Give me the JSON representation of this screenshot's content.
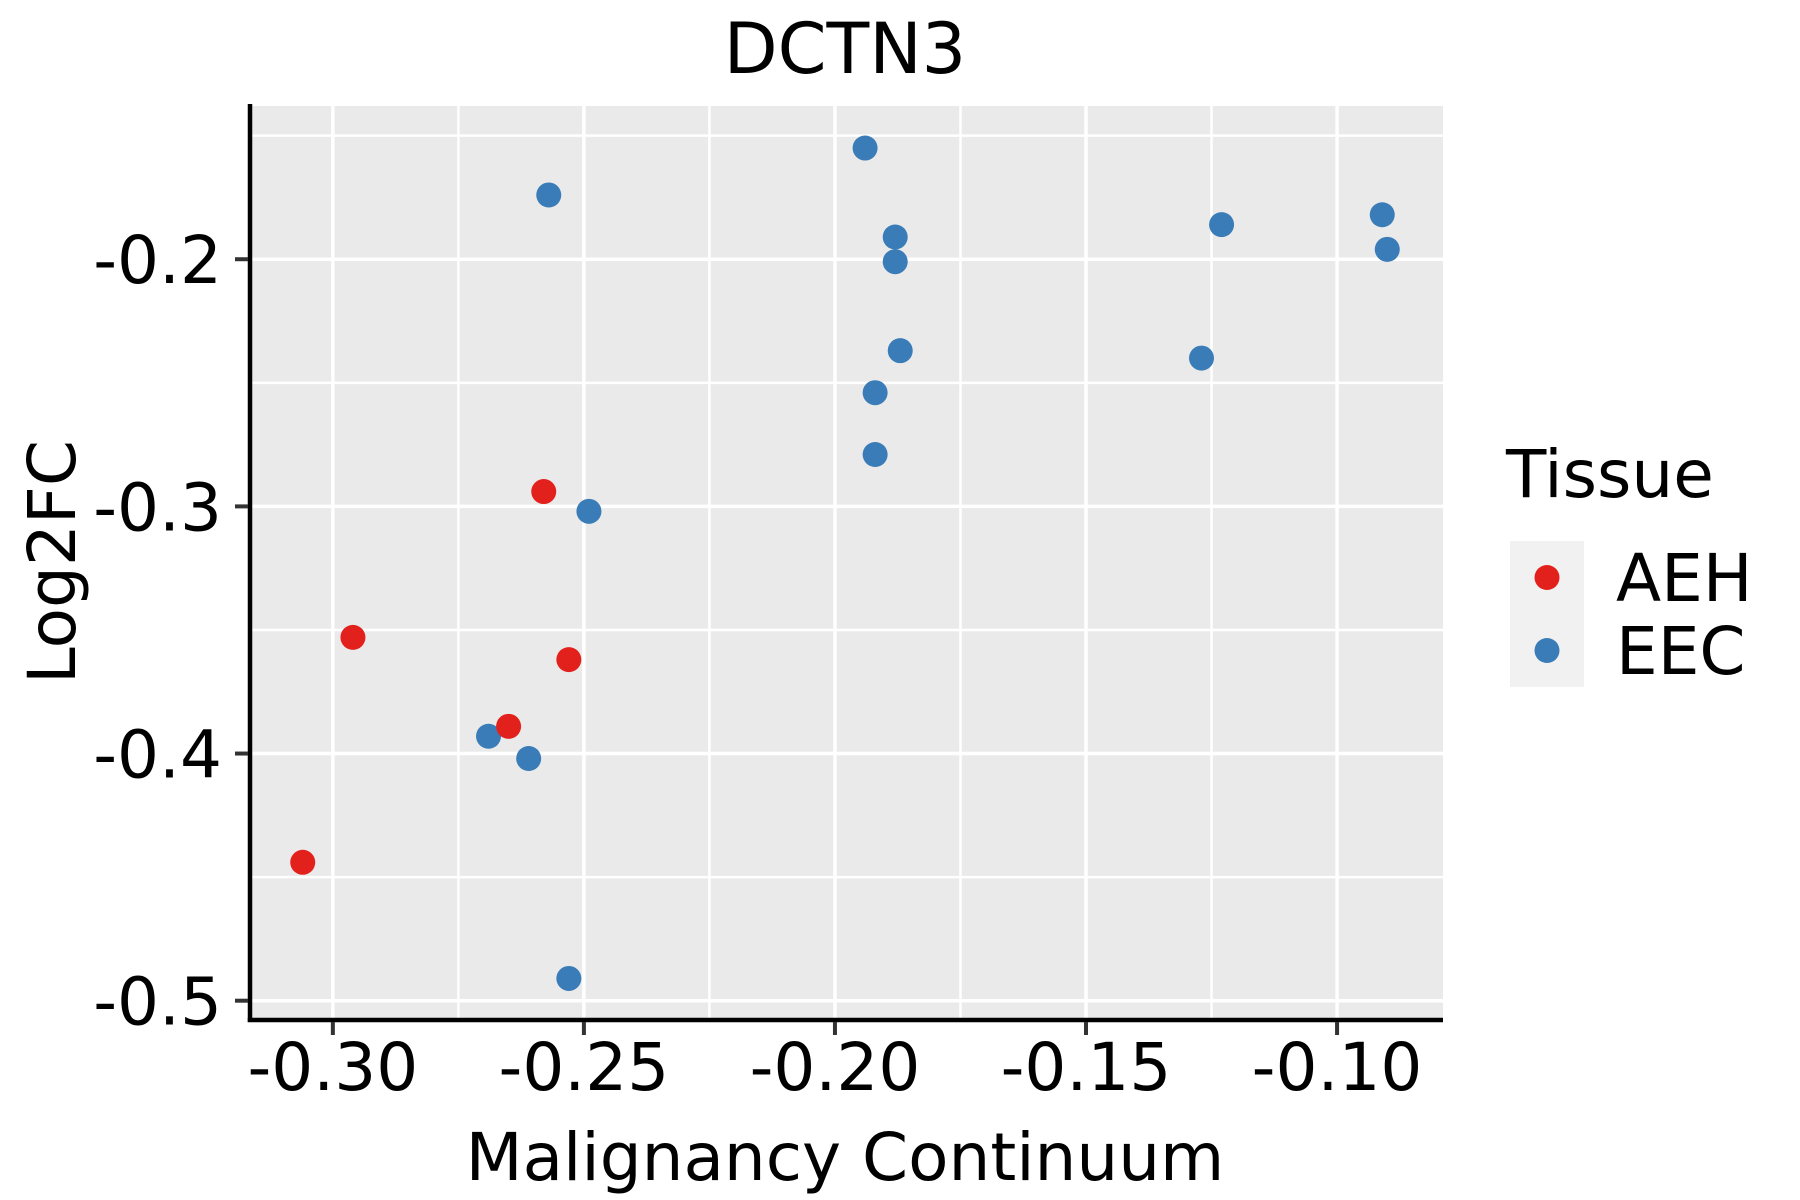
{
  "chart_data": {
    "type": "scatter",
    "title": "DCTN3",
    "xlabel": "Malignancy Continuum",
    "ylabel": "Log2FC",
    "legend_title": "Tissue",
    "legend_position": "right",
    "grid": true,
    "panel_bg": "#EAEAEA",
    "legend_key_bg": "#F1F1F1",
    "axis_line_color": "#000000",
    "tick_color": "#333333",
    "xlim": [
      -0.3169,
      -0.0789
    ],
    "ylim": [
      -0.507,
      -0.138
    ],
    "x_ticks": [
      -0.3,
      -0.25,
      -0.2,
      -0.15,
      -0.1
    ],
    "x_tick_labels": [
      "-0.30",
      "-0.25",
      "-0.20",
      "-0.15",
      "-0.10"
    ],
    "x_minor_ticks": [
      -0.275,
      -0.225,
      -0.175,
      -0.125
    ],
    "y_ticks": [
      -0.2,
      -0.3,
      -0.4,
      -0.5
    ],
    "y_tick_labels": [
      "-0.2",
      "-0.3",
      "-0.4",
      "-0.5"
    ],
    "y_minor_ticks": [
      -0.15,
      -0.25,
      -0.35,
      -0.45
    ],
    "series": [
      {
        "name": "AEH",
        "color": "#E3211C",
        "points": [
          [
            -0.258,
            -0.294
          ],
          [
            -0.296,
            -0.353
          ],
          [
            -0.253,
            -0.362
          ],
          [
            -0.265,
            -0.389
          ],
          [
            -0.306,
            -0.444
          ]
        ]
      },
      {
        "name": "EEC",
        "color": "#3A7CB8",
        "points": [
          [
            -0.257,
            -0.174
          ],
          [
            -0.194,
            -0.155
          ],
          [
            -0.188,
            -0.191
          ],
          [
            -0.188,
            -0.201
          ],
          [
            -0.187,
            -0.237
          ],
          [
            -0.192,
            -0.254
          ],
          [
            -0.192,
            -0.279
          ],
          [
            -0.123,
            -0.186
          ],
          [
            -0.091,
            -0.182
          ],
          [
            -0.09,
            -0.196
          ],
          [
            -0.127,
            -0.24
          ],
          [
            -0.249,
            -0.302
          ],
          [
            -0.269,
            -0.393
          ],
          [
            -0.261,
            -0.402
          ],
          [
            -0.253,
            -0.491
          ]
        ]
      }
    ]
  }
}
